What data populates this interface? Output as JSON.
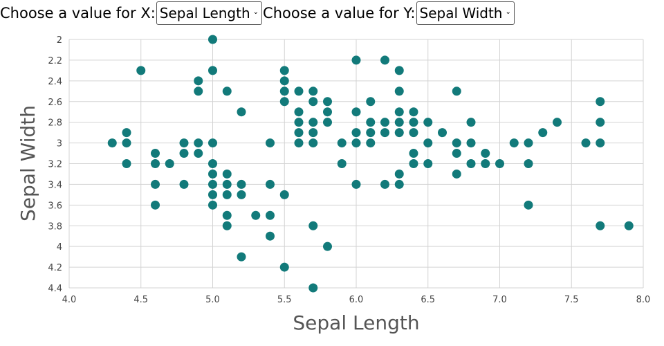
{
  "controls": {
    "x_prompt": "Choose a value for X:",
    "x_selected": "Sepal Length",
    "y_prompt": "Choose a value for Y:",
    "y_selected": "Sepal Width"
  },
  "colors": {
    "point": "#127a7a",
    "grid": "#d3d3d3",
    "tick_text": "#444444",
    "axis_title": "#555555"
  },
  "chart_data": {
    "type": "scatter",
    "xlabel": "Sepal Length",
    "ylabel": "Sepal Width",
    "xlim": [
      4.0,
      8.0
    ],
    "ylim": [
      2.0,
      4.4
    ],
    "y_inverted": true,
    "grid": true,
    "xticks": [
      "4.0",
      "4.5",
      "5.0",
      "5.5",
      "6.0",
      "6.5",
      "7.0",
      "7.5",
      "8.0"
    ],
    "yticks": [
      "2",
      "2.2",
      "2.4",
      "2.6",
      "2.8",
      "3",
      "3.2",
      "3.4",
      "3.6",
      "3.8",
      "4",
      "4.2",
      "4.4"
    ],
    "points": [
      [
        5.0,
        2.0
      ],
      [
        6.0,
        2.2
      ],
      [
        6.2,
        2.2
      ],
      [
        4.5,
        2.3
      ],
      [
        5.0,
        2.3
      ],
      [
        5.5,
        2.3
      ],
      [
        6.3,
        2.3
      ],
      [
        4.9,
        2.4
      ],
      [
        5.5,
        2.4
      ],
      [
        4.9,
        2.5
      ],
      [
        5.1,
        2.5
      ],
      [
        5.5,
        2.5
      ],
      [
        5.6,
        2.5
      ],
      [
        5.7,
        2.5
      ],
      [
        6.3,
        2.5
      ],
      [
        6.7,
        2.5
      ],
      [
        5.5,
        2.6
      ],
      [
        5.7,
        2.6
      ],
      [
        5.8,
        2.6
      ],
      [
        6.1,
        2.6
      ],
      [
        7.7,
        2.6
      ],
      [
        5.2,
        2.7
      ],
      [
        5.6,
        2.7
      ],
      [
        5.8,
        2.7
      ],
      [
        6.0,
        2.7
      ],
      [
        6.3,
        2.7
      ],
      [
        6.4,
        2.7
      ],
      [
        5.6,
        2.8
      ],
      [
        5.7,
        2.8
      ],
      [
        5.8,
        2.8
      ],
      [
        6.1,
        2.8
      ],
      [
        6.2,
        2.8
      ],
      [
        6.3,
        2.8
      ],
      [
        6.4,
        2.8
      ],
      [
        6.5,
        2.8
      ],
      [
        6.8,
        2.8
      ],
      [
        7.4,
        2.8
      ],
      [
        7.7,
        2.8
      ],
      [
        4.4,
        2.9
      ],
      [
        5.6,
        2.9
      ],
      [
        5.7,
        2.9
      ],
      [
        6.0,
        2.9
      ],
      [
        6.1,
        2.9
      ],
      [
        6.2,
        2.9
      ],
      [
        6.3,
        2.9
      ],
      [
        6.4,
        2.9
      ],
      [
        6.6,
        2.9
      ],
      [
        7.3,
        2.9
      ],
      [
        4.3,
        3.0
      ],
      [
        4.4,
        3.0
      ],
      [
        4.8,
        3.0
      ],
      [
        4.9,
        3.0
      ],
      [
        5.0,
        3.0
      ],
      [
        5.4,
        3.0
      ],
      [
        5.6,
        3.0
      ],
      [
        5.7,
        3.0
      ],
      [
        5.9,
        3.0
      ],
      [
        6.0,
        3.0
      ],
      [
        6.1,
        3.0
      ],
      [
        6.5,
        3.0
      ],
      [
        6.7,
        3.0
      ],
      [
        6.8,
        3.0
      ],
      [
        7.1,
        3.0
      ],
      [
        7.2,
        3.0
      ],
      [
        7.6,
        3.0
      ],
      [
        7.7,
        3.0
      ],
      [
        4.6,
        3.1
      ],
      [
        4.8,
        3.1
      ],
      [
        4.9,
        3.1
      ],
      [
        6.4,
        3.1
      ],
      [
        6.7,
        3.1
      ],
      [
        6.9,
        3.1
      ],
      [
        4.4,
        3.2
      ],
      [
        4.6,
        3.2
      ],
      [
        4.7,
        3.2
      ],
      [
        5.0,
        3.2
      ],
      [
        5.9,
        3.2
      ],
      [
        6.4,
        3.2
      ],
      [
        6.5,
        3.2
      ],
      [
        6.8,
        3.2
      ],
      [
        6.9,
        3.2
      ],
      [
        7.0,
        3.2
      ],
      [
        7.2,
        3.2
      ],
      [
        5.0,
        3.3
      ],
      [
        5.1,
        3.3
      ],
      [
        6.3,
        3.3
      ],
      [
        6.7,
        3.3
      ],
      [
        4.6,
        3.4
      ],
      [
        4.8,
        3.4
      ],
      [
        5.0,
        3.4
      ],
      [
        5.1,
        3.4
      ],
      [
        5.2,
        3.4
      ],
      [
        5.4,
        3.4
      ],
      [
        6.0,
        3.4
      ],
      [
        6.2,
        3.4
      ],
      [
        6.3,
        3.4
      ],
      [
        5.0,
        3.5
      ],
      [
        5.1,
        3.5
      ],
      [
        5.2,
        3.5
      ],
      [
        5.5,
        3.5
      ],
      [
        4.6,
        3.6
      ],
      [
        5.0,
        3.6
      ],
      [
        7.2,
        3.6
      ],
      [
        5.1,
        3.7
      ],
      [
        5.3,
        3.7
      ],
      [
        5.4,
        3.7
      ],
      [
        5.1,
        3.8
      ],
      [
        5.7,
        3.8
      ],
      [
        7.7,
        3.8
      ],
      [
        7.9,
        3.8
      ],
      [
        5.4,
        3.9
      ],
      [
        5.8,
        4.0
      ],
      [
        5.2,
        4.1
      ],
      [
        5.5,
        4.2
      ],
      [
        5.7,
        4.4
      ]
    ]
  }
}
